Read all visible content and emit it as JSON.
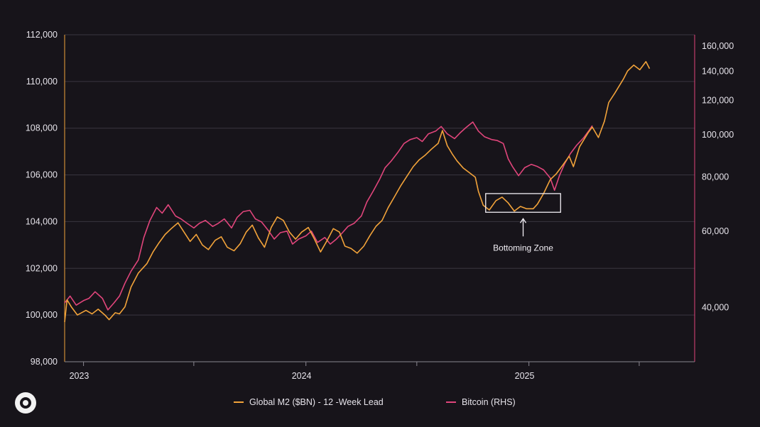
{
  "chart_data": {
    "type": "line",
    "title": "",
    "xlabel": "",
    "ylabel": "",
    "x_ticks": [
      "2023",
      "2024",
      "2025"
    ],
    "x_range": [
      "2022-12-01",
      "2025-09-30"
    ],
    "ylim_left": [
      98000,
      112000
    ],
    "left_ticks": [
      "98,000",
      "100,000",
      "102,000",
      "104,000",
      "106,000",
      "108,000",
      "110,000",
      "112,000"
    ],
    "ylim_right": [
      30000,
      170000
    ],
    "right_axis_scale": "log",
    "right_ticks": [
      "40,000",
      "60,000",
      "80,000",
      "100,000",
      "120,000",
      "140,000",
      "160,000"
    ],
    "grid": "horizontal",
    "legend_position": "bottom",
    "series": [
      {
        "name": "Global M2 ($BN) - 12 -Week Lead",
        "axis": "left",
        "color": "#f2a33a",
        "points": [
          [
            "2022-12-01",
            99700
          ],
          [
            "2022-12-05",
            100650
          ],
          [
            "2022-12-12",
            100350
          ],
          [
            "2022-12-22",
            100000
          ],
          [
            "2023-01-05",
            100200
          ],
          [
            "2023-01-15",
            100050
          ],
          [
            "2023-01-25",
            100250
          ],
          [
            "2023-02-05",
            100000
          ],
          [
            "2023-02-12",
            99800
          ],
          [
            "2023-02-22",
            100100
          ],
          [
            "2023-03-01",
            100050
          ],
          [
            "2023-03-10",
            100350
          ],
          [
            "2023-03-20",
            101200
          ],
          [
            "2023-04-01",
            101800
          ],
          [
            "2023-04-15",
            102200
          ],
          [
            "2023-04-25",
            102700
          ],
          [
            "2023-05-05",
            103100
          ],
          [
            "2023-05-15",
            103450
          ],
          [
            "2023-05-25",
            103700
          ],
          [
            "2023-06-05",
            103950
          ],
          [
            "2023-06-15",
            103550
          ],
          [
            "2023-06-25",
            103150
          ],
          [
            "2023-07-05",
            103450
          ],
          [
            "2023-07-15",
            103000
          ],
          [
            "2023-07-25",
            102800
          ],
          [
            "2023-08-05",
            103200
          ],
          [
            "2023-08-15",
            103350
          ],
          [
            "2023-08-25",
            102900
          ],
          [
            "2023-09-05",
            102750
          ],
          [
            "2023-09-15",
            103050
          ],
          [
            "2023-09-25",
            103550
          ],
          [
            "2023-10-05",
            103850
          ],
          [
            "2023-10-15",
            103300
          ],
          [
            "2023-10-25",
            102900
          ],
          [
            "2023-11-05",
            103750
          ],
          [
            "2023-11-15",
            104200
          ],
          [
            "2023-11-25",
            104050
          ],
          [
            "2023-12-05",
            103550
          ],
          [
            "2023-12-15",
            103250
          ],
          [
            "2023-12-25",
            103550
          ],
          [
            "2024-01-05",
            103750
          ],
          [
            "2024-01-15",
            103250
          ],
          [
            "2024-01-25",
            102700
          ],
          [
            "2024-02-05",
            103200
          ],
          [
            "2024-02-15",
            103700
          ],
          [
            "2024-02-25",
            103550
          ],
          [
            "2024-03-05",
            102950
          ],
          [
            "2024-03-15",
            102850
          ],
          [
            "2024-03-25",
            102650
          ],
          [
            "2024-04-05",
            102950
          ],
          [
            "2024-04-15",
            103400
          ],
          [
            "2024-04-25",
            103800
          ],
          [
            "2024-05-05",
            104050
          ],
          [
            "2024-05-15",
            104600
          ],
          [
            "2024-05-25",
            105050
          ],
          [
            "2024-06-05",
            105550
          ],
          [
            "2024-06-15",
            105950
          ],
          [
            "2024-06-25",
            106350
          ],
          [
            "2024-07-05",
            106650
          ],
          [
            "2024-07-15",
            106850
          ],
          [
            "2024-07-25",
            107100
          ],
          [
            "2024-08-05",
            107350
          ],
          [
            "2024-08-12",
            107900
          ],
          [
            "2024-08-20",
            107250
          ],
          [
            "2024-08-28",
            106900
          ],
          [
            "2024-09-05",
            106600
          ],
          [
            "2024-09-15",
            106300
          ],
          [
            "2024-09-25",
            106100
          ],
          [
            "2024-10-05",
            105900
          ],
          [
            "2024-10-10",
            105300
          ],
          [
            "2024-10-18",
            104700
          ],
          [
            "2024-10-28",
            104500
          ],
          [
            "2024-11-08",
            104900
          ],
          [
            "2024-11-18",
            105050
          ],
          [
            "2024-11-28",
            104800
          ],
          [
            "2024-12-08",
            104450
          ],
          [
            "2024-12-18",
            104650
          ],
          [
            "2024-12-28",
            104550
          ],
          [
            "2025-01-08",
            104550
          ],
          [
            "2025-01-15",
            104750
          ],
          [
            "2025-01-25",
            105200
          ],
          [
            "2025-02-05",
            105800
          ],
          [
            "2025-02-15",
            106050
          ],
          [
            "2025-02-25",
            106400
          ],
          [
            "2025-03-08",
            106800
          ],
          [
            "2025-03-15",
            106350
          ],
          [
            "2025-03-25",
            107200
          ],
          [
            "2025-04-08",
            107800
          ],
          [
            "2025-04-15",
            108050
          ],
          [
            "2025-04-25",
            107600
          ],
          [
            "2025-05-05",
            108300
          ],
          [
            "2025-05-12",
            109100
          ],
          [
            "2025-05-22",
            109500
          ],
          [
            "2025-06-05",
            110100
          ],
          [
            "2025-06-12",
            110450
          ],
          [
            "2025-06-22",
            110700
          ],
          [
            "2025-07-02",
            110500
          ],
          [
            "2025-07-12",
            110850
          ],
          [
            "2025-07-18",
            110550
          ]
        ]
      },
      {
        "name": "Bitcoin (RHS)",
        "axis": "right",
        "color": "#e0457b",
        "points": [
          [
            "2022-12-01",
            41000
          ],
          [
            "2022-12-10",
            42500
          ],
          [
            "2022-12-20",
            40500
          ],
          [
            "2023-01-01",
            41500
          ],
          [
            "2023-01-10",
            42000
          ],
          [
            "2023-01-20",
            43500
          ],
          [
            "2023-02-01",
            42000
          ],
          [
            "2023-02-10",
            39500
          ],
          [
            "2023-02-20",
            41000
          ],
          [
            "2023-03-01",
            42500
          ],
          [
            "2023-03-10",
            45500
          ],
          [
            "2023-03-20",
            48500
          ],
          [
            "2023-04-01",
            51500
          ],
          [
            "2023-04-10",
            58000
          ],
          [
            "2023-04-20",
            63500
          ],
          [
            "2023-05-01",
            68000
          ],
          [
            "2023-05-10",
            66000
          ],
          [
            "2023-05-20",
            69000
          ],
          [
            "2023-06-01",
            65000
          ],
          [
            "2023-06-10",
            64000
          ],
          [
            "2023-06-20",
            62500
          ],
          [
            "2023-07-01",
            61000
          ],
          [
            "2023-07-10",
            62500
          ],
          [
            "2023-07-20",
            63500
          ],
          [
            "2023-08-01",
            61500
          ],
          [
            "2023-08-10",
            62500
          ],
          [
            "2023-08-20",
            64000
          ],
          [
            "2023-09-01",
            61000
          ],
          [
            "2023-09-10",
            64500
          ],
          [
            "2023-09-20",
            66500
          ],
          [
            "2023-10-01",
            67000
          ],
          [
            "2023-10-10",
            64000
          ],
          [
            "2023-10-20",
            63000
          ],
          [
            "2023-11-01",
            60000
          ],
          [
            "2023-11-10",
            57500
          ],
          [
            "2023-11-20",
            59500
          ],
          [
            "2023-12-01",
            60000
          ],
          [
            "2023-12-10",
            56000
          ],
          [
            "2023-12-20",
            57500
          ],
          [
            "2024-01-01",
            58500
          ],
          [
            "2024-01-10",
            60000
          ],
          [
            "2024-01-20",
            56500
          ],
          [
            "2024-02-01",
            58000
          ],
          [
            "2024-02-10",
            56000
          ],
          [
            "2024-02-20",
            57500
          ],
          [
            "2024-03-01",
            59500
          ],
          [
            "2024-03-10",
            61500
          ],
          [
            "2024-03-20",
            62500
          ],
          [
            "2024-04-01",
            65000
          ],
          [
            "2024-04-10",
            70000
          ],
          [
            "2024-04-20",
            74000
          ],
          [
            "2024-05-01",
            79000
          ],
          [
            "2024-05-10",
            84000
          ],
          [
            "2024-05-20",
            87000
          ],
          [
            "2024-06-01",
            91500
          ],
          [
            "2024-06-10",
            95500
          ],
          [
            "2024-06-20",
            97500
          ],
          [
            "2024-07-01",
            98500
          ],
          [
            "2024-07-10",
            96500
          ],
          [
            "2024-07-20",
            100500
          ],
          [
            "2024-08-01",
            102000
          ],
          [
            "2024-08-10",
            104500
          ],
          [
            "2024-08-20",
            100500
          ],
          [
            "2024-09-01",
            98000
          ],
          [
            "2024-09-10",
            101000
          ],
          [
            "2024-09-20",
            104000
          ],
          [
            "2024-10-01",
            107000
          ],
          [
            "2024-10-10",
            102000
          ],
          [
            "2024-10-20",
            99000
          ],
          [
            "2024-11-01",
            97500
          ],
          [
            "2024-11-10",
            97000
          ],
          [
            "2024-11-20",
            95500
          ],
          [
            "2024-11-28",
            88000
          ],
          [
            "2024-12-05",
            84500
          ],
          [
            "2024-12-15",
            80500
          ],
          [
            "2024-12-25",
            84000
          ],
          [
            "2025-01-05",
            85500
          ],
          [
            "2025-01-15",
            84500
          ],
          [
            "2025-01-25",
            83000
          ],
          [
            "2025-02-05",
            79500
          ],
          [
            "2025-02-12",
            74500
          ],
          [
            "2025-02-20",
            80500
          ],
          [
            "2025-03-01",
            86000
          ],
          [
            "2025-03-10",
            90500
          ],
          [
            "2025-03-20",
            94500
          ],
          [
            "2025-04-01",
            98500
          ],
          [
            "2025-04-10",
            102500
          ],
          [
            "2025-04-15",
            105000
          ]
        ]
      }
    ],
    "annotations": [
      {
        "text": "Bottoming Zone",
        "box_x": [
          "2024-10-22",
          "2025-02-22"
        ],
        "box_y": [
          104400,
          105200
        ],
        "arrow": true
      }
    ]
  }
}
